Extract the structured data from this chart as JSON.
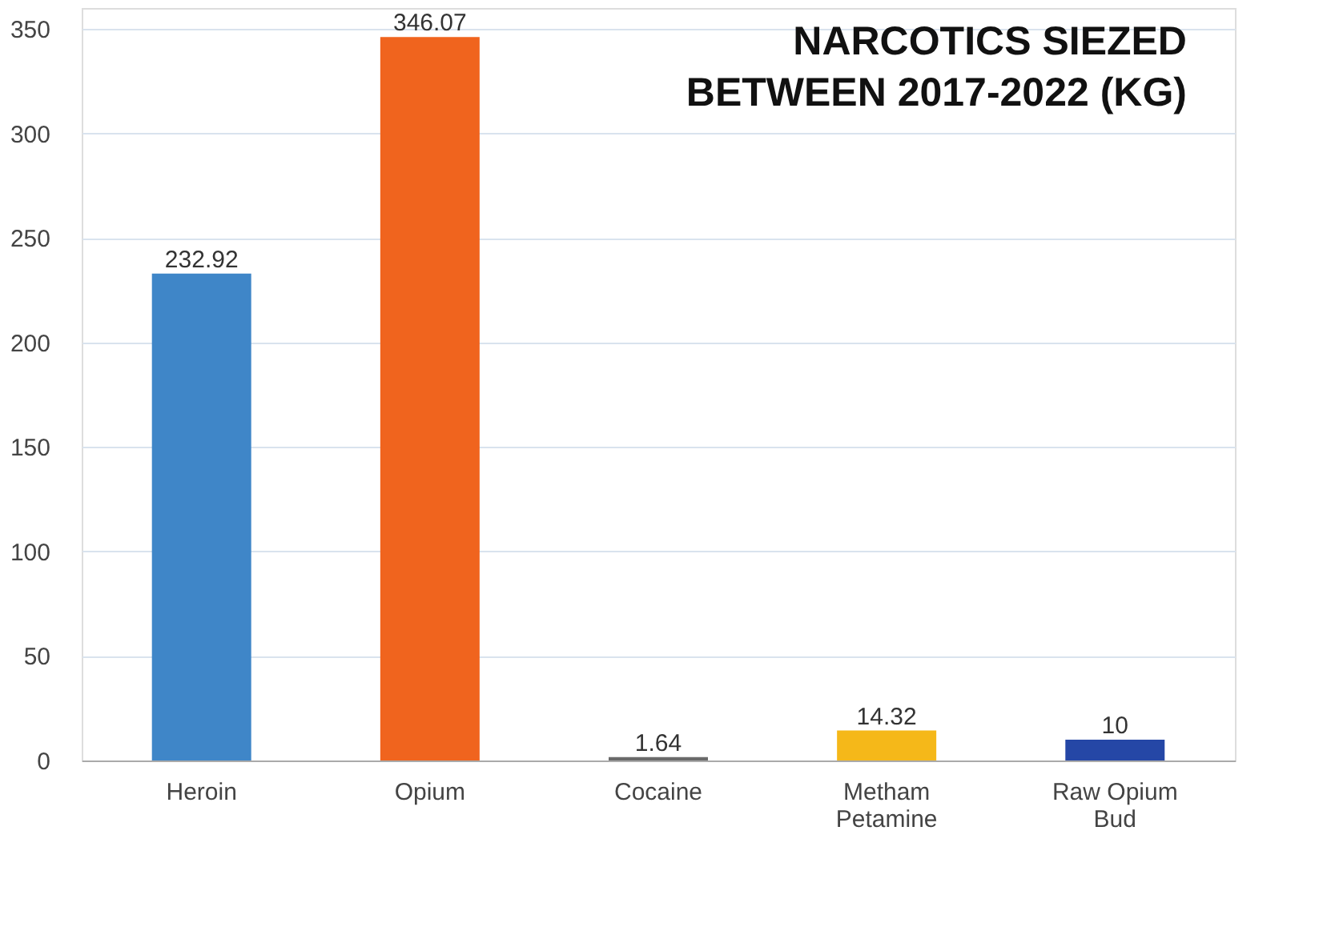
{
  "chart_data": {
    "type": "bar",
    "title": "NARCOTICS SIEZED BETWEEN 2017-2022 (KG)",
    "categories": [
      "Heroin",
      "Opium",
      "Cocaine",
      "Metham Petamine",
      "Raw Opium Bud"
    ],
    "values": [
      232.92,
      346.07,
      1.64,
      14.32,
      10
    ],
    "colors": [
      "#3f86c8",
      "#f0641e",
      "#6a6a6a",
      "#f5b819",
      "#2547a6"
    ],
    "ylim": [
      0,
      360
    ],
    "yticks": [
      0,
      50,
      100,
      150,
      200,
      250,
      300,
      350
    ],
    "grid": "y",
    "data_labels": true
  }
}
